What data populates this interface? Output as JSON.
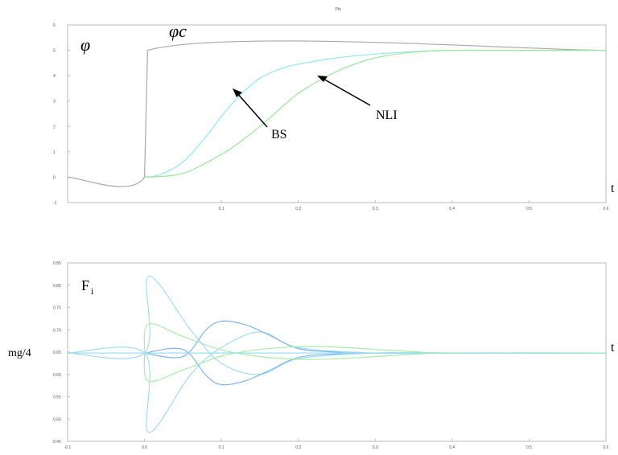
{
  "figure_title": "Phi",
  "chart_data": [
    {
      "type": "line",
      "ylabel": "φ",
      "ylabel_sub": "",
      "xlabel": "t",
      "xlim": [
        -0.1,
        0.6
      ],
      "ylim": [
        -1,
        6
      ],
      "ytick_labels": [
        "-1",
        "0",
        "1",
        "2",
        "3",
        "4",
        "5",
        "6"
      ],
      "xtick_labels": [
        "0.1",
        "0.2",
        "0.3",
        "0.4",
        "0.5",
        "0.6"
      ],
      "grid": false,
      "series": [
        {
          "name": "φc",
          "color": "#a8a8a8",
          "x": [
            -0.1,
            0.0,
            0.004,
            0.6
          ],
          "y": [
            0,
            0,
            5,
            5
          ]
        },
        {
          "name": "BS",
          "color": "#8ee8ef",
          "x": [
            0.0,
            0.02,
            0.05,
            0.08,
            0.1,
            0.12,
            0.15,
            0.18,
            0.2,
            0.25,
            0.3,
            0.35,
            0.4,
            0.45,
            0.5,
            0.6
          ],
          "y": [
            0,
            0.1,
            0.6,
            1.6,
            2.4,
            3.1,
            3.9,
            4.3,
            4.45,
            4.7,
            4.85,
            4.95,
            5,
            5,
            5,
            5
          ]
        },
        {
          "name": "NLI",
          "color": "#98e898",
          "x": [
            0.0,
            0.05,
            0.1,
            0.12,
            0.15,
            0.18,
            0.2,
            0.23,
            0.26,
            0.3,
            0.35,
            0.4,
            0.45,
            0.5,
            0.6
          ],
          "y": [
            0,
            0.15,
            0.9,
            1.3,
            2.0,
            2.8,
            3.3,
            3.85,
            4.3,
            4.7,
            4.93,
            5,
            5,
            5,
            5
          ]
        }
      ],
      "annotations": [
        {
          "text": "BS",
          "x": 0.1,
          "y": 3.5
        },
        {
          "text": "NLI",
          "x": 0.23,
          "y": 4.0
        }
      ]
    },
    {
      "type": "line",
      "ylabel": "F",
      "ylabel_sub": "i",
      "xlabel": "t",
      "hline_label": "mg/4",
      "xlim": [
        -0.1,
        0.6
      ],
      "ylim": [
        0.45,
        0.85
      ],
      "ytick_labels": [
        "0.45",
        "0.50",
        "0.55",
        "0.60",
        "0.65",
        "0.70",
        "0.75",
        "0.80",
        "0.85"
      ],
      "xtick_labels": [
        "-0.1",
        "0.0",
        "0.1",
        "0.2",
        "0.3",
        "0.4",
        "0.5",
        "0.6"
      ],
      "grid": false,
      "series": [
        {
          "color": "#9fdef0",
          "x": [
            -0.1,
            0.0,
            0.005,
            0.06,
            0.1,
            0.15,
            0.2,
            0.3,
            0.4,
            0.6
          ],
          "y": [
            0.648,
            0.648,
            0.82,
            0.7,
            0.625,
            0.6,
            0.635,
            0.648,
            0.648,
            0.648
          ]
        },
        {
          "color": "#9fdef0",
          "x": [
            -0.1,
            0.0,
            0.005,
            0.06,
            0.1,
            0.15,
            0.2,
            0.3,
            0.4,
            0.6
          ],
          "y": [
            0.648,
            0.648,
            0.47,
            0.6,
            0.66,
            0.695,
            0.66,
            0.648,
            0.648,
            0.648
          ]
        },
        {
          "color": "#7fb3f0",
          "x": [
            0.0,
            0.05,
            0.08,
            0.1,
            0.13,
            0.16,
            0.2,
            0.25,
            0.3,
            0.6
          ],
          "y": [
            0.648,
            0.64,
            0.7,
            0.719,
            0.712,
            0.69,
            0.658,
            0.65,
            0.648,
            0.648
          ]
        },
        {
          "color": "#7fb3f0",
          "x": [
            0.0,
            0.05,
            0.08,
            0.1,
            0.13,
            0.16,
            0.2,
            0.25,
            0.3,
            0.6
          ],
          "y": [
            0.648,
            0.656,
            0.598,
            0.577,
            0.585,
            0.607,
            0.638,
            0.646,
            0.648,
            0.648
          ]
        },
        {
          "color": "#a8eca8",
          "x": [
            0.0,
            0.005,
            0.05,
            0.1,
            0.15,
            0.2,
            0.25,
            0.3,
            0.35,
            0.4,
            0.6
          ],
          "y": [
            0.648,
            0.713,
            0.685,
            0.655,
            0.64,
            0.634,
            0.635,
            0.64,
            0.645,
            0.648,
            0.648
          ]
        },
        {
          "color": "#a8eca8",
          "x": [
            0.0,
            0.005,
            0.05,
            0.1,
            0.15,
            0.2,
            0.25,
            0.3,
            0.35,
            0.4,
            0.6
          ],
          "y": [
            0.648,
            0.585,
            0.61,
            0.641,
            0.656,
            0.662,
            0.661,
            0.656,
            0.651,
            0.648,
            0.648
          ]
        },
        {
          "color": "#9fdef0",
          "x": [
            -0.1,
            0.6
          ],
          "y": [
            0.648,
            0.648
          ]
        }
      ]
    }
  ]
}
